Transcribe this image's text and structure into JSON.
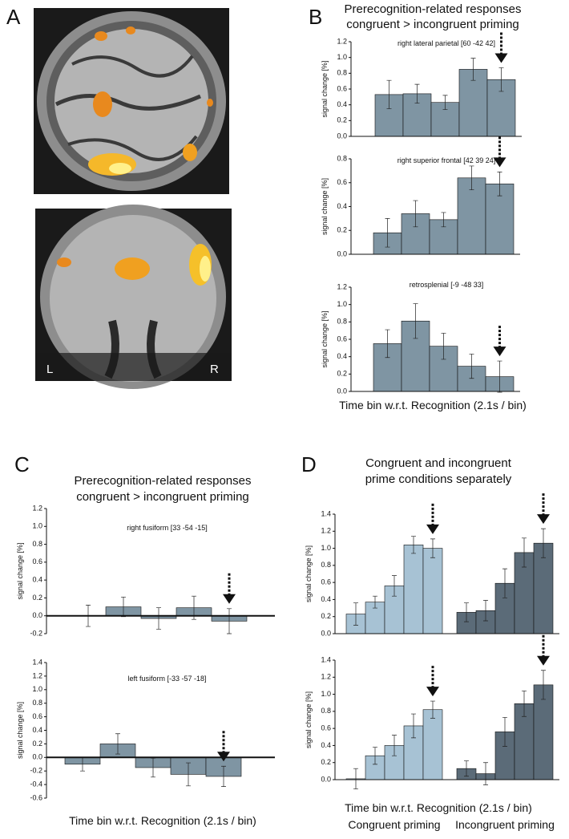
{
  "figure": {
    "panel_labels": [
      "A",
      "B",
      "C",
      "D"
    ],
    "brain_labels": [
      "L",
      "R"
    ],
    "heading_b": [
      "Prerecognition-related responses",
      "congruent > incongruent priming"
    ],
    "heading_c": [
      "Prerecognition-related responses",
      "congruent > incongruent priming"
    ],
    "heading_d": [
      "Congruent and incongruent",
      "prime conditions separately"
    ]
  },
  "chart_data": [
    {
      "type": "bar",
      "title": "right lateral parietal [60 -42 42]",
      "ylabel": "signal change [%]",
      "values": [
        0.53,
        0.54,
        0.43,
        0.85,
        0.72
      ],
      "errors": [
        0.18,
        0.12,
        0.09,
        0.14,
        0.15
      ],
      "color": "#7f95a3",
      "ylim": [
        0,
        1.2
      ],
      "yticks": [
        {
          "value": 0,
          "label": "0.0"
        },
        0.2,
        0.4,
        0.6,
        0.8,
        {
          "value": 1,
          "label": "1.0"
        },
        1.2
      ]
    },
    {
      "type": "bar",
      "title": "right superior frontal [42 39 24]",
      "ylabel": "signal change [%]",
      "values": [
        0.18,
        0.34,
        0.29,
        0.64,
        0.59
      ],
      "errors": [
        0.12,
        0.11,
        0.06,
        0.1,
        0.1
      ],
      "color": "#7f95a3",
      "ylim": [
        0,
        0.8
      ],
      "yticks": [
        {
          "value": 0,
          "label": "0.0"
        },
        0.2,
        0.4,
        0.6,
        0.8
      ]
    },
    {
      "type": "bar",
      "title": "retrosplenial [-9 -48 33]",
      "ylabel": "signal change [%]",
      "values": [
        0.55,
        0.81,
        0.52,
        0.29,
        0.17
      ],
      "errors": [
        0.16,
        0.2,
        0.15,
        0.14,
        0.18
      ],
      "color": "#7f95a3",
      "ylim": [
        0,
        1.2
      ],
      "yticks": [
        {
          "value": 0,
          "label": "0.0"
        },
        0.2,
        0.4,
        0.6,
        0.8,
        {
          "value": 1,
          "label": "1.0"
        },
        1.2
      ],
      "xlabel": "Time bin w.r.t. Recognition (2.1s / bin)"
    },
    {
      "type": "bar",
      "title": "right fusiform [33 -54 -15]",
      "ylabel": "signal change [%]",
      "values": [
        0,
        0.1,
        -0.03,
        0.09,
        -0.06
      ],
      "errors": [
        0.12,
        0.11,
        0.12,
        0.13,
        0.14
      ],
      "color": "#7f95a3",
      "ylim": [
        -0.2,
        1.2
      ],
      "yticks": [
        -0.2,
        {
          "value": 0,
          "label": "0.0"
        },
        0.2,
        0.4,
        0.6,
        0.8,
        {
          "value": 1,
          "label": "1.0"
        },
        1.2
      ]
    },
    {
      "type": "bar",
      "title": "left fusiform [-33 -57 -18]",
      "ylabel": "signal change [%]",
      "values": [
        -0.1,
        0.2,
        -0.15,
        -0.25,
        -0.28
      ],
      "errors": [
        0.1,
        0.15,
        0.14,
        0.17,
        0.15
      ],
      "color": "#7f95a3",
      "ylim": [
        -0.6,
        1.4
      ],
      "yticks": [
        -0.6,
        -0.4,
        -0.2,
        {
          "value": 0,
          "label": "0.0"
        },
        0.2,
        0.4,
        0.6,
        0.8,
        {
          "value": 1,
          "label": "1.0"
        },
        1.2,
        1.4
      ],
      "xlabel": "Time bin w.r.t. Recognition (2.1s / bin)"
    },
    {
      "type": "grouped-bar",
      "ylabel": "signal change [%]",
      "series": [
        {
          "color": "#a7c2d4",
          "values": [
            0.23,
            0.37,
            0.56,
            1.04,
            1.0
          ],
          "errors": [
            0.13,
            0.07,
            0.12,
            0.1,
            0.11
          ]
        },
        {
          "color": "#5b6b78",
          "values": [
            0.25,
            0.27,
            0.59,
            0.95,
            1.06
          ],
          "errors": [
            0.11,
            0.12,
            0.17,
            0.17,
            0.17
          ]
        }
      ],
      "ylim": [
        0,
        1.4
      ],
      "yticks": [
        {
          "value": 0,
          "label": "0.0"
        },
        0.2,
        0.4,
        0.6,
        0.8,
        {
          "value": 1,
          "label": "1.0"
        },
        1.2,
        1.4
      ]
    },
    {
      "type": "grouped-bar",
      "ylabel": "signal change [%]",
      "series": [
        {
          "name": "Congruent priming",
          "color": "#a7c2d4",
          "values": [
            0.01,
            0.28,
            0.4,
            0.63,
            0.82
          ],
          "errors": [
            0.12,
            0.1,
            0.12,
            0.14,
            0.1
          ]
        },
        {
          "name": "Incongruent priming",
          "color": "#5b6b78",
          "values": [
            0.13,
            0.07,
            0.56,
            0.89,
            1.11
          ],
          "errors": [
            0.09,
            0.13,
            0.17,
            0.15,
            0.17
          ]
        }
      ],
      "ylim": [
        0,
        1.4
      ],
      "yticks": [
        {
          "value": 0,
          "label": "0.0"
        },
        0.2,
        0.4,
        0.6,
        0.8,
        {
          "value": 1,
          "label": "1.0"
        },
        1.2,
        1.4
      ],
      "xlabel": "Time bin w.r.t. Recognition (2.1s / bin)"
    }
  ]
}
